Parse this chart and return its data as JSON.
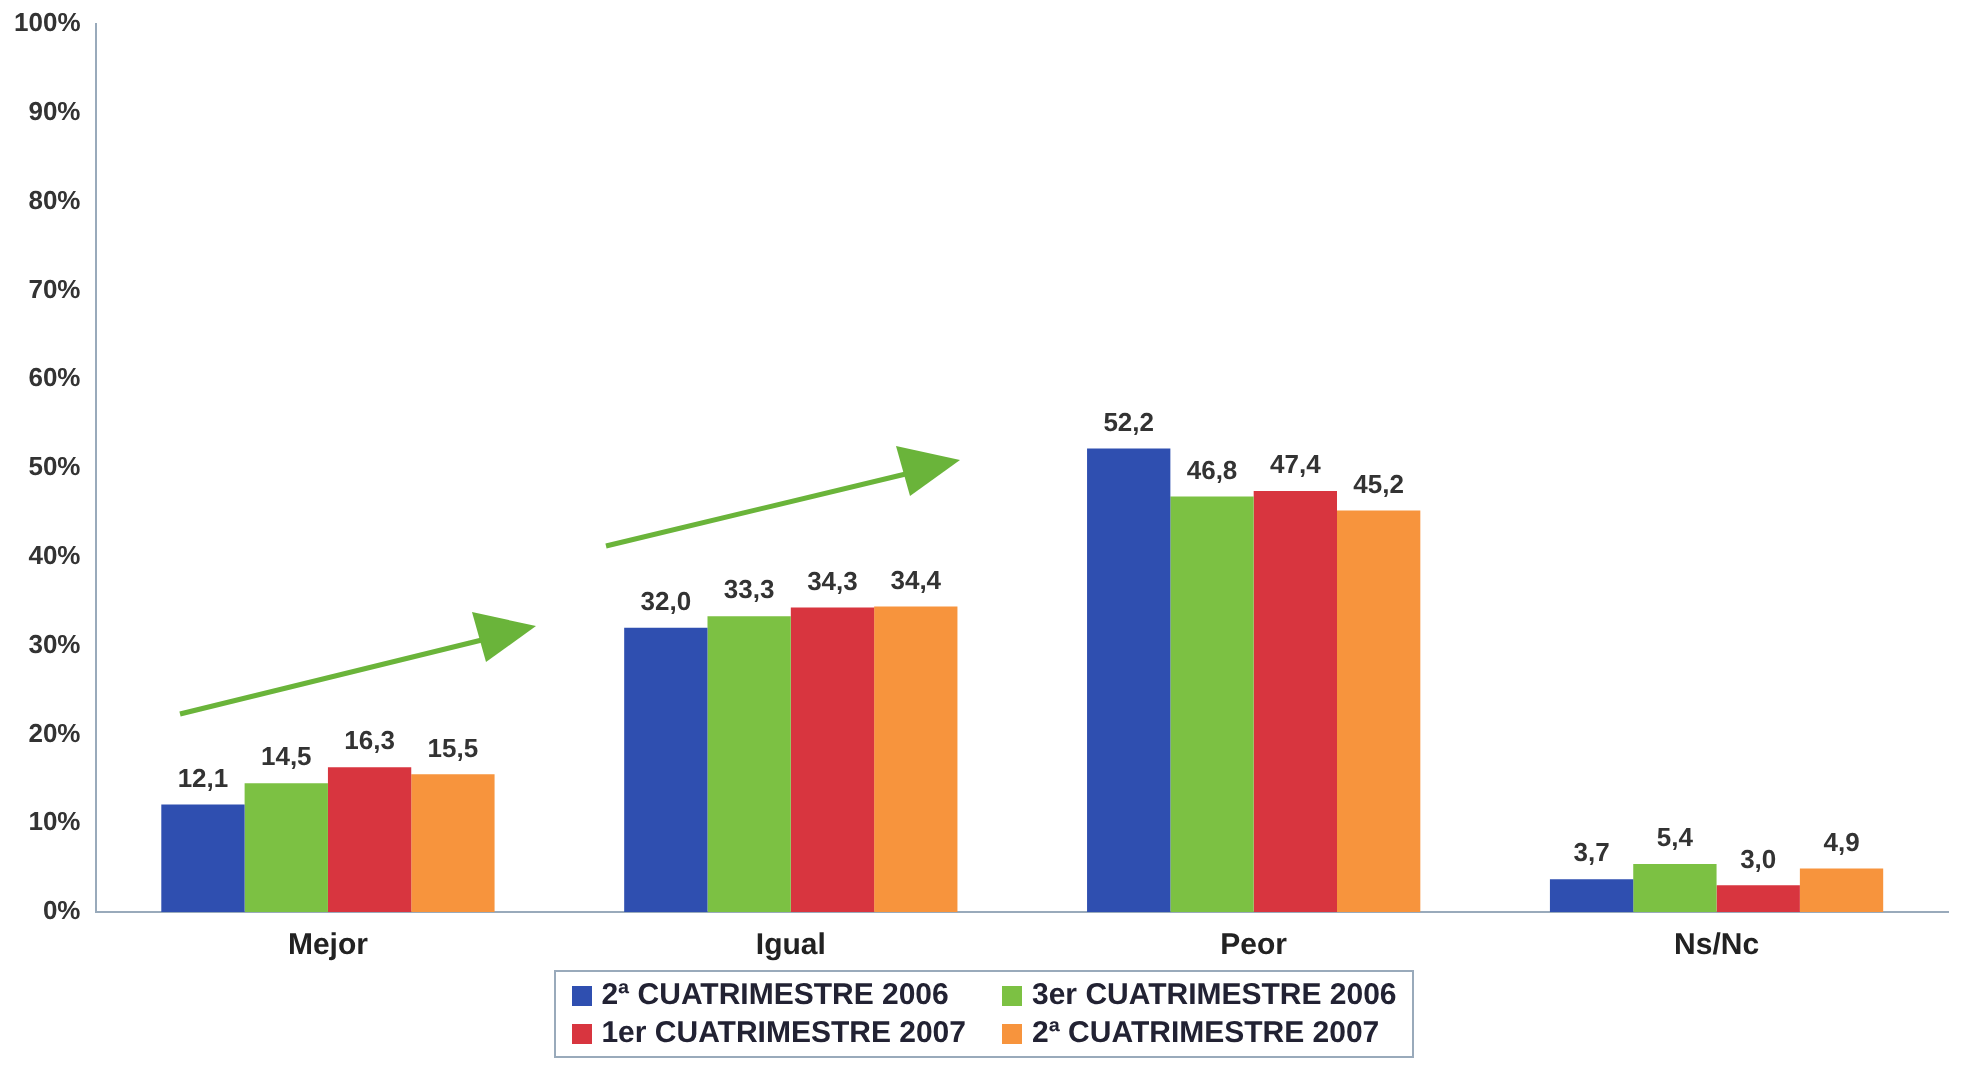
{
  "chart_data": {
    "type": "bar",
    "categories": [
      "Mejor",
      "Igual",
      "Peor",
      "Ns/Nc"
    ],
    "series": [
      {
        "name": "2ª CUATRIMESTRE 2006",
        "color": "#2f4fb0",
        "values": [
          12.1,
          32.0,
          52.2,
          3.7
        ],
        "value_labels": [
          "12,1",
          "32,0",
          "52,2",
          "3,7"
        ]
      },
      {
        "name": "3er CUATRIMESTRE 2006",
        "color": "#7cc143",
        "values": [
          14.5,
          33.3,
          46.8,
          5.4
        ],
        "value_labels": [
          "14,5",
          "33,3",
          "46,8",
          "5,4"
        ]
      },
      {
        "name": "1er CUATRIMESTRE 2007",
        "color": "#d8353f",
        "values": [
          16.3,
          34.3,
          47.4,
          3.0
        ],
        "value_labels": [
          "16,3",
          "34,3",
          "47,4",
          "3,0"
        ]
      },
      {
        "name": "2ª CUATRIMESTRE 2007",
        "color": "#f7943d",
        "values": [
          15.5,
          34.4,
          45.2,
          4.9
        ],
        "value_labels": [
          "15,5",
          "34,4",
          "45,2",
          "4,9"
        ]
      }
    ],
    "ylim": [
      0,
      100
    ],
    "yticks": [
      {
        "value": 0,
        "label": "0%"
      },
      {
        "value": 10,
        "label": "10%"
      },
      {
        "value": 20,
        "label": "20%"
      },
      {
        "value": 30,
        "label": "30%"
      },
      {
        "value": 40,
        "label": "40%"
      },
      {
        "value": 50,
        "label": "50%"
      },
      {
        "value": 60,
        "label": "60%"
      },
      {
        "value": 70,
        "label": "70%"
      },
      {
        "value": 80,
        "label": "80%"
      },
      {
        "value": 90,
        "label": "90%"
      },
      {
        "value": 100,
        "label": "100%"
      }
    ],
    "grid": false,
    "legend": "bottom"
  }
}
